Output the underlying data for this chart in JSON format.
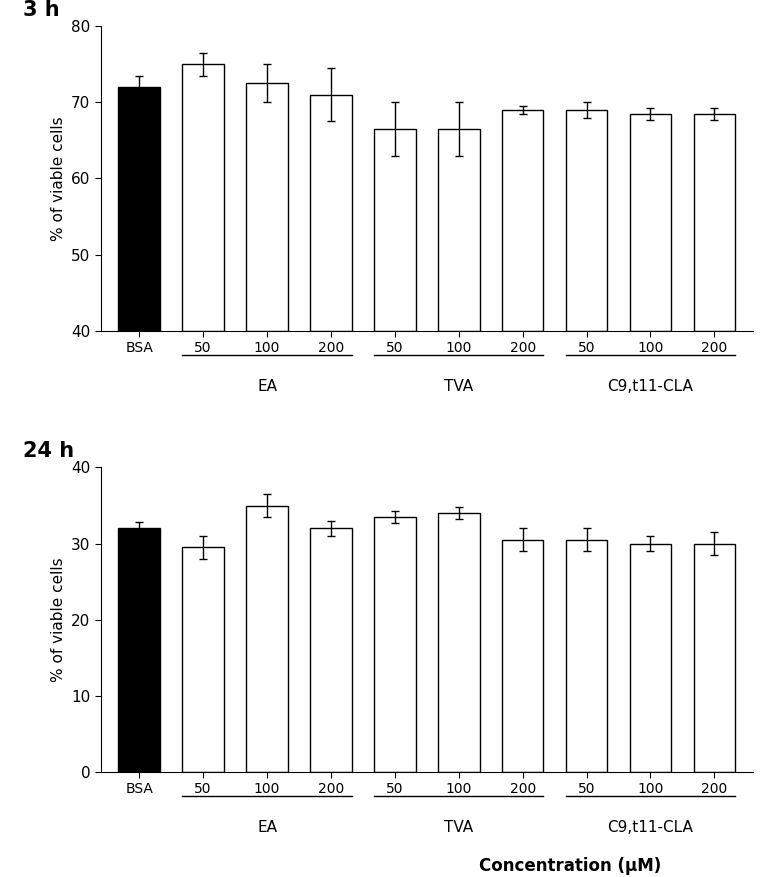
{
  "panel1": {
    "time_label": "3 h",
    "values": [
      72,
      75,
      72.5,
      71,
      66.5,
      66.5,
      69,
      69,
      68.5,
      68.5
    ],
    "errors": [
      1.5,
      1.5,
      2.5,
      3.5,
      3.5,
      3.5,
      0.5,
      1.0,
      0.8,
      0.8
    ],
    "colors": [
      "black",
      "white",
      "white",
      "white",
      "white",
      "white",
      "white",
      "white",
      "white",
      "white"
    ],
    "ylim": [
      40,
      80
    ],
    "yticks": [
      40,
      50,
      60,
      70,
      80
    ],
    "ylabel": "% of viable cells"
  },
  "panel2": {
    "time_label": "24 h",
    "values": [
      32,
      29.5,
      35,
      32,
      33.5,
      34,
      30.5,
      30.5,
      30,
      30
    ],
    "errors": [
      0.8,
      1.5,
      1.5,
      1.0,
      0.8,
      0.8,
      1.5,
      1.5,
      1.0,
      1.5
    ],
    "colors": [
      "black",
      "white",
      "white",
      "white",
      "white",
      "white",
      "white",
      "white",
      "white",
      "white"
    ],
    "ylim": [
      0,
      40
    ],
    "yticks": [
      0,
      10,
      20,
      30,
      40
    ],
    "ylabel": "% of viable cells"
  },
  "x_tick_labels": [
    "BSA",
    "50",
    "100",
    "200",
    "50",
    "100",
    "200",
    "50",
    "100",
    "200"
  ],
  "group_labels": [
    "EA",
    "TVA",
    "C9,t11-CLA"
  ],
  "xlabel": "Concentration (μM)",
  "bar_width": 0.65,
  "edgecolor": "black",
  "background_color": "white"
}
